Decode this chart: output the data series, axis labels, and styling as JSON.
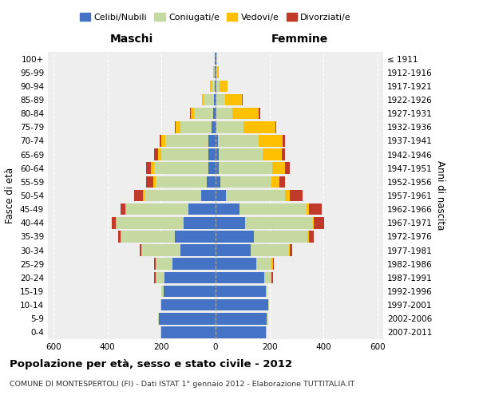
{
  "age_groups": [
    "100+",
    "95-99",
    "90-94",
    "85-89",
    "80-84",
    "75-79",
    "70-74",
    "65-69",
    "60-64",
    "55-59",
    "50-54",
    "45-49",
    "40-44",
    "35-39",
    "30-34",
    "25-29",
    "20-24",
    "15-19",
    "10-14",
    "5-9",
    "0-4"
  ],
  "birth_years": [
    "≤ 1911",
    "1912-1916",
    "1917-1921",
    "1922-1926",
    "1927-1931",
    "1932-1936",
    "1937-1941",
    "1942-1946",
    "1947-1951",
    "1952-1956",
    "1957-1961",
    "1962-1966",
    "1967-1971",
    "1972-1976",
    "1977-1981",
    "1982-1986",
    "1987-1991",
    "1992-1996",
    "1997-2001",
    "2002-2006",
    "2007-2011"
  ],
  "male": {
    "celibi": [
      2,
      3,
      4,
      5,
      8,
      15,
      28,
      28,
      28,
      32,
      52,
      100,
      118,
      150,
      130,
      160,
      190,
      192,
      200,
      210,
      200
    ],
    "coniugati": [
      2,
      4,
      12,
      38,
      72,
      115,
      158,
      172,
      198,
      190,
      212,
      230,
      248,
      198,
      142,
      58,
      28,
      8,
      4,
      4,
      4
    ],
    "vedovi": [
      0,
      2,
      4,
      8,
      12,
      18,
      14,
      14,
      12,
      8,
      4,
      4,
      4,
      4,
      4,
      4,
      4,
      0,
      0,
      0,
      0
    ],
    "divorziati": [
      0,
      0,
      0,
      0,
      2,
      4,
      8,
      14,
      18,
      28,
      32,
      18,
      14,
      8,
      4,
      4,
      4,
      0,
      0,
      0,
      0
    ]
  },
  "female": {
    "nubili": [
      2,
      3,
      4,
      4,
      4,
      4,
      8,
      12,
      12,
      18,
      38,
      88,
      108,
      142,
      130,
      150,
      180,
      185,
      195,
      190,
      185
    ],
    "coniugate": [
      2,
      4,
      12,
      32,
      58,
      98,
      152,
      162,
      198,
      190,
      218,
      248,
      252,
      198,
      142,
      58,
      28,
      8,
      4,
      4,
      4
    ],
    "vedove": [
      2,
      4,
      28,
      62,
      98,
      118,
      88,
      72,
      48,
      28,
      18,
      8,
      4,
      4,
      4,
      4,
      0,
      0,
      0,
      0,
      0
    ],
    "divorziate": [
      0,
      0,
      0,
      2,
      4,
      4,
      8,
      12,
      18,
      22,
      48,
      48,
      38,
      18,
      8,
      4,
      4,
      0,
      0,
      0,
      0
    ]
  },
  "colors": {
    "celibi_nubili": "#4472c4",
    "coniugati_e": "#c5d9a0",
    "vedovi_e": "#ffc000",
    "divorziati_e": "#c0392b"
  },
  "title": "Popolazione per età, sesso e stato civile - 2012",
  "subtitle": "COMUNE DI MONTESPERTOLI (FI) - Dati ISTAT 1° gennaio 2012 - Elaborazione TUTTITALIA.IT",
  "ylabel": "Fasce di età",
  "ylabel2": "Anni di nascita",
  "xlabel_maschi": "Maschi",
  "xlabel_femmine": "Femmine",
  "xlim": 620,
  "background_color": "#eeeeee"
}
